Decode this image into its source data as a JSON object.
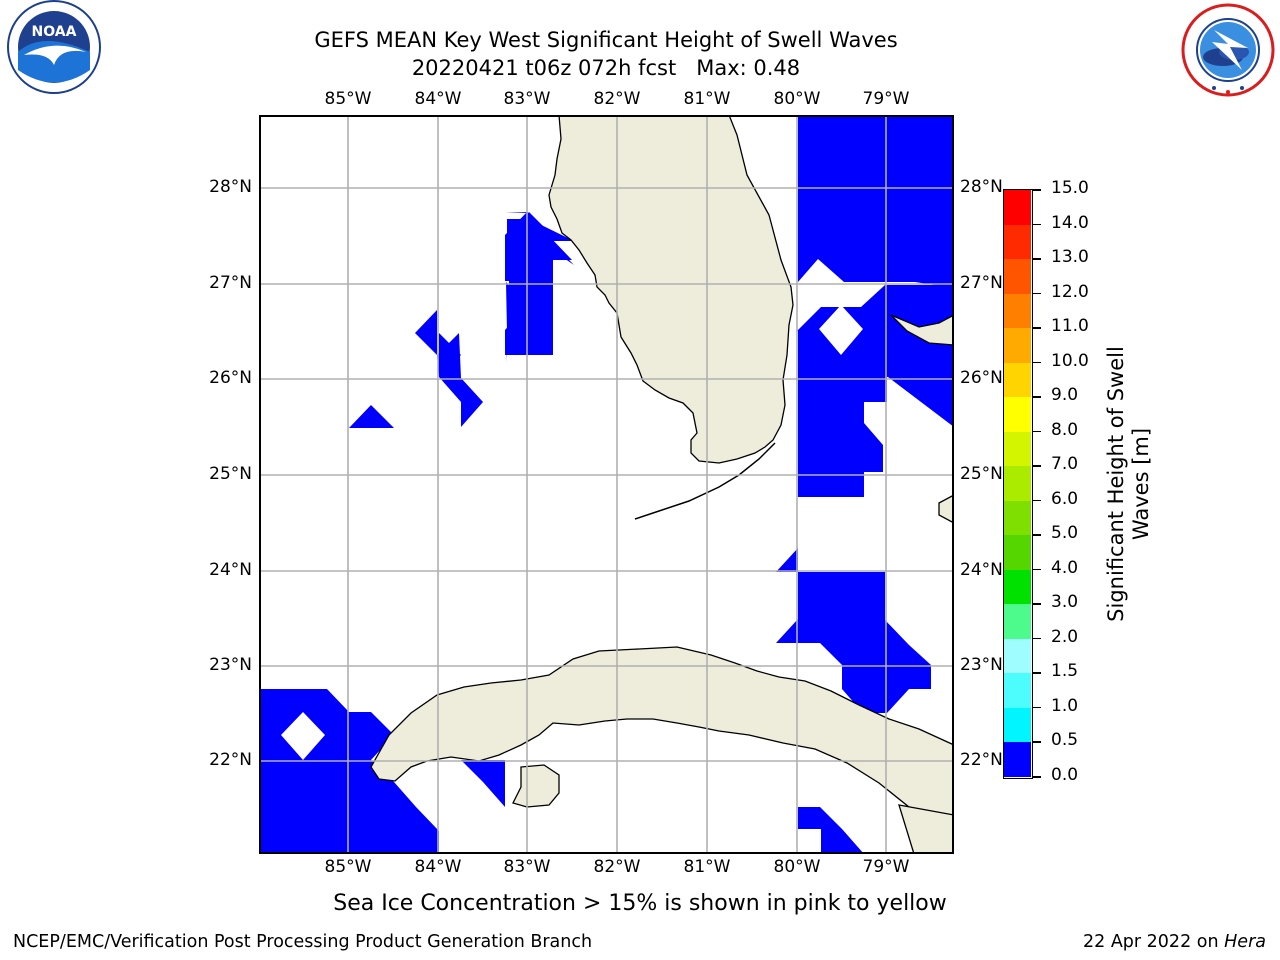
{
  "title": {
    "line1": "GEFS MEAN Key West Significant Height of Swell Waves",
    "line2": "20220421 t06z 072h fcst   Max: 0.48"
  },
  "map": {
    "lon_labels": [
      "85°W",
      "84°W",
      "83°W",
      "82°W",
      "81°W",
      "80°W",
      "79°W"
    ],
    "lat_labels": [
      "28°N",
      "27°N",
      "26°N",
      "25°N",
      "24°N",
      "23°N",
      "22°N"
    ],
    "land_color": "#eeecdb",
    "field_color": "#0000ff"
  },
  "colorbar": {
    "label": "Significant Height of Swell Waves [m]",
    "ticks": [
      "15.0",
      "14.0",
      "13.0",
      "12.0",
      "11.0",
      "10.0",
      "9.0",
      "8.0",
      "7.0",
      "6.0",
      "5.0",
      "4.0",
      "3.0",
      "2.0",
      "1.5",
      "1.0",
      "0.5",
      "0.0"
    ],
    "colors_top_to_bottom": [
      "#ff0000",
      "#ff2a00",
      "#ff5500",
      "#ff7f00",
      "#ffaa00",
      "#ffd400",
      "#ffff00",
      "#d4f500",
      "#aaeb00",
      "#7fe000",
      "#55d600",
      "#00e100",
      "#4dfa8c",
      "#9ffcff",
      "#4dfcfc",
      "#00f5ff",
      "#0080ff",
      "#0000ff"
    ]
  },
  "caption": "Sea Ice Concentration > 15% is shown in pink to yellow",
  "footer": {
    "left": "NCEP/EMC/Verification Post Processing Product Generation Branch",
    "date": "22 Apr 2022 on ",
    "machine": "Hera"
  },
  "logos": {
    "noaa_text": "NOAA",
    "noaa_ring": "NATIONAL OCEANIC AND ATMOSPHERIC ADMINISTRATION · U.S. DEPARTMENT OF COMMERCE",
    "nws_ring": "NATIONAL WEATHER SERVICE"
  }
}
